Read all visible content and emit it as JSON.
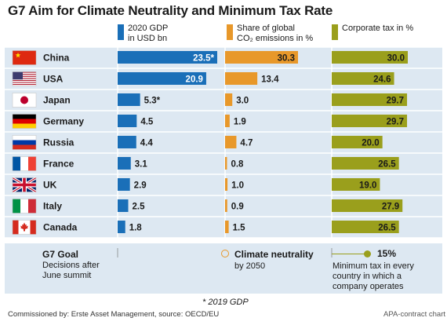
{
  "title": "G7 Aim for Climate Neutrality and Minimum Tax Rate",
  "chart_data": {
    "type": "bar",
    "categories": [
      "China",
      "USA",
      "Japan",
      "Germany",
      "Russia",
      "France",
      "UK",
      "Italy",
      "Canada"
    ],
    "flag_icons": [
      "flag-china-icon",
      "flag-usa-icon",
      "flag-japan-icon",
      "flag-germany-icon",
      "flag-russia-icon",
      "flag-france-icon",
      "flag-uk-icon",
      "flag-italy-icon",
      "flag-canada-icon"
    ],
    "series": [
      {
        "name": "2020 GDP in USD bn",
        "legend_lines": [
          "2020 GDP",
          "in USD bn"
        ],
        "color": "#1a6fb8",
        "values": [
          23.5,
          20.9,
          5.3,
          4.5,
          4.4,
          3.1,
          2.9,
          2.5,
          1.8
        ],
        "labels": [
          "23.5*",
          "20.9",
          "5.3*",
          "4.5",
          "4.4",
          "3.1",
          "2.9",
          "2.5",
          "1.8"
        ],
        "max": 23.5
      },
      {
        "name": "Share of global CO2 emissions in %",
        "legend_lines": [
          "Share of global",
          "CO₂ emissions in %"
        ],
        "color": "#e8982a",
        "values": [
          30.3,
          13.4,
          3.0,
          1.9,
          4.7,
          0.8,
          1.0,
          0.9,
          1.5
        ],
        "labels": [
          "30.3",
          "13.4",
          "3.0",
          "1.9",
          "4.7",
          "0.8",
          "1.0",
          "0.9",
          "1.5"
        ],
        "max": 30.3
      },
      {
        "name": "Corporate tax in %",
        "legend_lines": [
          "Corporate tax in %"
        ],
        "color": "#9a9f1c",
        "values": [
          30.0,
          24.6,
          29.7,
          29.7,
          20.0,
          26.5,
          19.0,
          27.9,
          26.5
        ],
        "labels": [
          "30.0",
          "24.6",
          "29.7",
          "29.7",
          "20.0",
          "26.5",
          "19.0",
          "27.9",
          "26.5"
        ],
        "max": 30.0
      }
    ]
  },
  "goals": {
    "label": "G7 Goal",
    "desc_lines": [
      "Decisions after",
      "June summit"
    ],
    "climate_title": "Climate neutrality",
    "climate_sub": "by 2050",
    "tax_value": "15%",
    "tax_lines": [
      "Minimum tax in every",
      "country in which a",
      "company operates"
    ]
  },
  "footnote": "* 2019 GDP",
  "source": "Commissioned by: Erste Asset Management, source: OECD/EU",
  "credit": "APA-contract chart"
}
